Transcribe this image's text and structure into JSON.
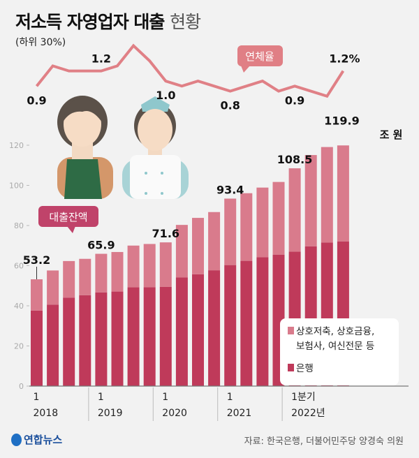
{
  "header": {
    "title_bold": "저소득 자영업자 대출",
    "title_light": "현황",
    "subtitle": "(하위 30%)"
  },
  "colors": {
    "bank": "#bf3a5a",
    "nonbank": "#d97b8c",
    "line": "#e08086",
    "callout_loan": "#c0436a",
    "callout_rate": "#e07f85"
  },
  "chart_data": [
    {
      "type": "bar",
      "stacked": true,
      "title": "대출잔액",
      "unit": "조 원",
      "categories": [
        "2018Q1",
        "2018Q2",
        "2018Q3",
        "2018Q4",
        "2019Q1",
        "2019Q2",
        "2019Q3",
        "2019Q4",
        "2020Q1",
        "2020Q2",
        "2020Q3",
        "2020Q4",
        "2021Q1",
        "2021Q2",
        "2021Q3",
        "2021Q4",
        "2022Q1",
        "2022Q2",
        "2022Q3",
        "2022Q4"
      ],
      "x_tick_labels": [
        {
          "index": 0,
          "top": "1",
          "bottom": "2018"
        },
        {
          "index": 4,
          "top": "1",
          "bottom": "2019"
        },
        {
          "index": 8,
          "top": "1",
          "bottom": "2020"
        },
        {
          "index": 12,
          "top": "1",
          "bottom": "2021"
        },
        {
          "index": 16,
          "top": "1분기",
          "bottom": "2022년"
        }
      ],
      "ylim": [
        0,
        120
      ],
      "yticks": [
        0,
        20,
        40,
        60,
        80,
        100,
        120
      ],
      "series": [
        {
          "name": "은행",
          "values": [
            37.6,
            40.6,
            44.1,
            45.3,
            46.7,
            47.1,
            49.2,
            49.3,
            49.4,
            54.1,
            55.7,
            57.7,
            60.3,
            62.4,
            64.2,
            65.5,
            67.0,
            69.6,
            71.5,
            72.1
          ]
        },
        {
          "name": "상호저축, 상호금융, 보험사, 여신전문 등",
          "values": [
            15.6,
            17.0,
            18.2,
            18.1,
            19.2,
            19.7,
            20.8,
            21.5,
            22.2,
            26.2,
            28.1,
            29.0,
            33.1,
            33.7,
            34.7,
            36.2,
            41.5,
            45.5,
            47.6,
            47.8
          ]
        }
      ],
      "totals": [
        53.2,
        57.6,
        62.3,
        63.4,
        65.9,
        66.8,
        70.0,
        70.8,
        71.6,
        80.3,
        83.8,
        86.7,
        93.4,
        96.1,
        98.9,
        101.7,
        108.5,
        115.1,
        119.1,
        119.9
      ],
      "data_labels": [
        {
          "index": 0,
          "text": "53.2"
        },
        {
          "index": 4,
          "text": "65.9"
        },
        {
          "index": 8,
          "text": "71.6"
        },
        {
          "index": 12,
          "text": "93.4"
        },
        {
          "index": 16,
          "text": "108.5"
        },
        {
          "index": 19,
          "text": "119.9"
        }
      ],
      "legend": {
        "position": "bottom-right",
        "items": [
          "상호저축, 상호금융,",
          "보험사, 여신전문 등",
          "은행"
        ]
      }
    },
    {
      "type": "line",
      "title": "연체율",
      "unit": "%",
      "values": [
        0.9,
        1.3,
        1.2,
        1.2,
        1.2,
        1.3,
        1.7,
        1.4,
        1.0,
        0.9,
        1.0,
        0.9,
        0.8,
        0.9,
        1.0,
        0.8,
        0.9,
        0.8,
        0.7,
        1.2
      ],
      "data_labels": [
        {
          "index": 0,
          "text": "0.9"
        },
        {
          "index": 4,
          "text": "1.2"
        },
        {
          "index": 8,
          "text": "1.0"
        },
        {
          "index": 12,
          "text": "0.8"
        },
        {
          "index": 16,
          "text": "0.9"
        },
        {
          "index": 19,
          "text": "1.2%"
        }
      ]
    }
  ],
  "unit_label": "조 원",
  "footer": {
    "logo": "연합뉴스",
    "source": "자료: 한국은행, 더불어민주당 양경숙 의원"
  }
}
